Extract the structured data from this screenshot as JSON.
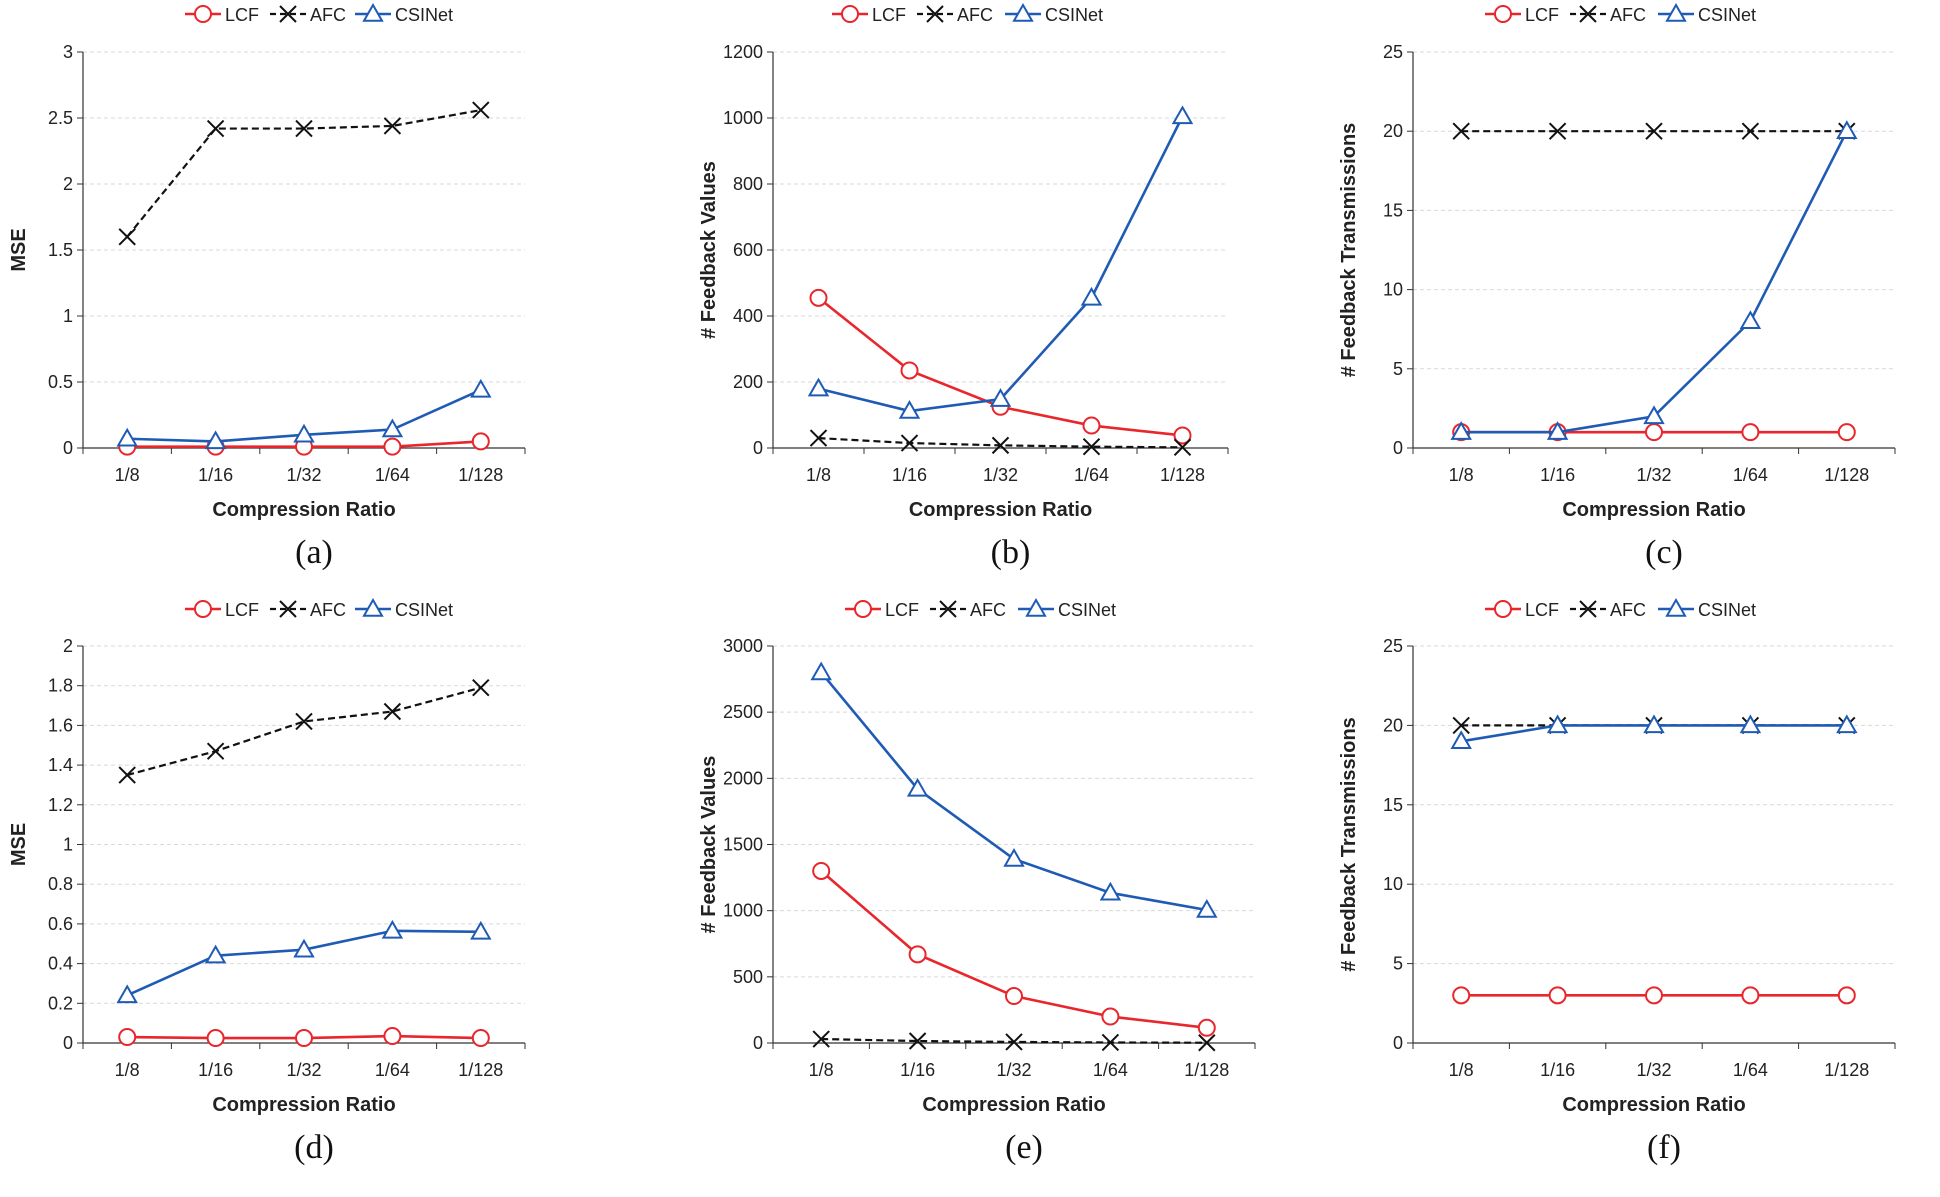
{
  "chart_data": [
    {
      "type": "line",
      "panel_label": "(a)",
      "categories": [
        "1/8",
        "1/16",
        "1/32",
        "1/64",
        "1/128"
      ],
      "xlabel": "Compression Ratio",
      "ylabel": "MSE",
      "ylim": [
        0,
        3
      ],
      "yticks": [
        "0",
        "0.5",
        "1",
        "1.5",
        "2",
        "2.5",
        "3"
      ],
      "ytick_values": [
        0,
        0.5,
        1,
        1.5,
        2,
        2.5,
        3
      ],
      "grid": true,
      "legend": "top",
      "series": [
        {
          "name": "LCF",
          "color": "#e8262c",
          "marker": "circle",
          "dash": "solid",
          "values": [
            0.01,
            0.01,
            0.01,
            0.01,
            0.05
          ]
        },
        {
          "name": "AFC",
          "color": "#111111",
          "marker": "x",
          "dash": "dashed",
          "values": [
            1.6,
            2.42,
            2.42,
            2.44,
            2.56
          ]
        },
        {
          "name": "CSINet",
          "color": "#1f5bb5",
          "marker": "triangle",
          "dash": "solid",
          "values": [
            0.07,
            0.05,
            0.1,
            0.14,
            0.44
          ]
        }
      ]
    },
    {
      "type": "line",
      "panel_label": "(b)",
      "categories": [
        "1/8",
        "1/16",
        "1/32",
        "1/64",
        "1/128"
      ],
      "xlabel": "Compression Ratio",
      "ylabel": "# Feedback Values",
      "ylim": [
        0,
        1200
      ],
      "yticks": [
        "0",
        "200",
        "400",
        "600",
        "800",
        "1000",
        "1200"
      ],
      "ytick_values": [
        0,
        200,
        400,
        600,
        800,
        1000,
        1200
      ],
      "grid": true,
      "legend": "top",
      "series": [
        {
          "name": "LCF",
          "color": "#e8262c",
          "marker": "circle",
          "dash": "solid",
          "values": [
            455,
            235,
            125,
            68,
            38
          ]
        },
        {
          "name": "AFC",
          "color": "#111111",
          "marker": "x",
          "dash": "dashed",
          "values": [
            30,
            15,
            8,
            4,
            2
          ]
        },
        {
          "name": "CSINet",
          "color": "#1f5bb5",
          "marker": "triangle",
          "dash": "solid",
          "values": [
            180,
            112,
            148,
            455,
            1005
          ]
        }
      ]
    },
    {
      "type": "line",
      "panel_label": "(c)",
      "categories": [
        "1/8",
        "1/16",
        "1/32",
        "1/64",
        "1/128"
      ],
      "xlabel": "Compression Ratio",
      "ylabel": "# Feedback Transmissions",
      "ylim": [
        0,
        25
      ],
      "yticks": [
        "0",
        "5",
        "10",
        "15",
        "20",
        "25"
      ],
      "ytick_values": [
        0,
        5,
        10,
        15,
        20,
        25
      ],
      "grid": true,
      "legend": "top",
      "series": [
        {
          "name": "LCF",
          "color": "#e8262c",
          "marker": "circle",
          "dash": "solid",
          "values": [
            1,
            1,
            1,
            1,
            1
          ]
        },
        {
          "name": "AFC",
          "color": "#111111",
          "marker": "x",
          "dash": "dashed",
          "values": [
            20,
            20,
            20,
            20,
            20
          ]
        },
        {
          "name": "CSINet",
          "color": "#1f5bb5",
          "marker": "triangle",
          "dash": "solid",
          "values": [
            1,
            1,
            2,
            8,
            20
          ]
        }
      ]
    },
    {
      "type": "line",
      "panel_label": "(d)",
      "categories": [
        "1/8",
        "1/16",
        "1/32",
        "1/64",
        "1/128"
      ],
      "xlabel": "Compression Ratio",
      "ylabel": "MSE",
      "ylim": [
        0,
        2
      ],
      "yticks": [
        "0",
        "0.2",
        "0.4",
        "0.6",
        "0.8",
        "1",
        "1.2",
        "1.4",
        "1.6",
        "1.8",
        "2"
      ],
      "ytick_values": [
        0,
        0.2,
        0.4,
        0.6,
        0.8,
        1,
        1.2,
        1.4,
        1.6,
        1.8,
        2
      ],
      "grid": true,
      "legend": "top",
      "series": [
        {
          "name": "LCF",
          "color": "#e8262c",
          "marker": "circle",
          "dash": "solid",
          "values": [
            0.03,
            0.025,
            0.025,
            0.035,
            0.025
          ]
        },
        {
          "name": "AFC",
          "color": "#111111",
          "marker": "x",
          "dash": "dashed",
          "values": [
            1.35,
            1.47,
            1.62,
            1.67,
            1.79
          ]
        },
        {
          "name": "CSINet",
          "color": "#1f5bb5",
          "marker": "triangle",
          "dash": "solid",
          "values": [
            0.24,
            0.44,
            0.47,
            0.565,
            0.56
          ]
        }
      ]
    },
    {
      "type": "line",
      "panel_label": "(e)",
      "categories": [
        "1/8",
        "1/16",
        "1/32",
        "1/64",
        "1/128"
      ],
      "xlabel": "Compression Ratio",
      "ylabel": "# Feedback Values",
      "ylim": [
        0,
        3000
      ],
      "yticks": [
        "0",
        "500",
        "1000",
        "1500",
        "2000",
        "2500",
        "3000"
      ],
      "ytick_values": [
        0,
        500,
        1000,
        1500,
        2000,
        2500,
        3000
      ],
      "grid": true,
      "legend": "top",
      "series": [
        {
          "name": "LCF",
          "color": "#e8262c",
          "marker": "circle",
          "dash": "solid",
          "values": [
            1300,
            670,
            355,
            200,
            115
          ]
        },
        {
          "name": "AFC",
          "color": "#111111",
          "marker": "x",
          "dash": "dashed",
          "values": [
            30,
            15,
            8,
            4,
            2
          ]
        },
        {
          "name": "CSINet",
          "color": "#1f5bb5",
          "marker": "triangle",
          "dash": "solid",
          "values": [
            2800,
            1920,
            1390,
            1135,
            1005
          ]
        }
      ]
    },
    {
      "type": "line",
      "panel_label": "(f)",
      "categories": [
        "1/8",
        "1/16",
        "1/32",
        "1/64",
        "1/128"
      ],
      "xlabel": "Compression Ratio",
      "ylabel": "# Feedback Transmissions",
      "ylim": [
        0,
        25
      ],
      "yticks": [
        "0",
        "5",
        "10",
        "15",
        "20",
        "25"
      ],
      "ytick_values": [
        0,
        5,
        10,
        15,
        20,
        25
      ],
      "grid": true,
      "legend": "top",
      "series": [
        {
          "name": "LCF",
          "color": "#e8262c",
          "marker": "circle",
          "dash": "solid",
          "values": [
            3,
            3,
            3,
            3,
            3
          ]
        },
        {
          "name": "AFC",
          "color": "#111111",
          "marker": "x",
          "dash": "dashed",
          "values": [
            20,
            20,
            20,
            20,
            20
          ]
        },
        {
          "name": "CSINet",
          "color": "#1f5bb5",
          "marker": "triangle",
          "dash": "solid",
          "values": [
            19,
            20,
            20,
            20,
            20
          ]
        }
      ]
    }
  ]
}
